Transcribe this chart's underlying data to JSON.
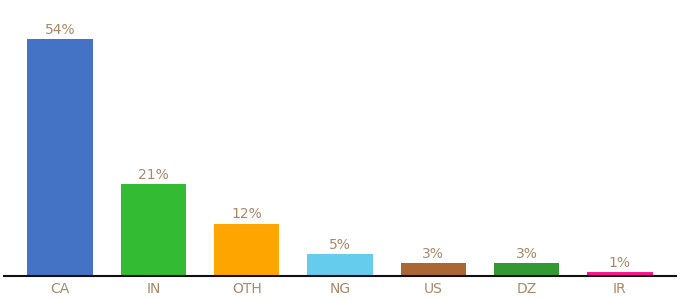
{
  "categories": [
    "CA",
    "IN",
    "OTH",
    "NG",
    "US",
    "DZ",
    "IR"
  ],
  "values": [
    54,
    21,
    12,
    5,
    3,
    3,
    1
  ],
  "bar_colors": [
    "#4472C4",
    "#33BB33",
    "#FFA500",
    "#66CCEE",
    "#AA6633",
    "#339933",
    "#FF1493"
  ],
  "label_texts": [
    "54%",
    "21%",
    "12%",
    "5%",
    "3%",
    "3%",
    "1%"
  ],
  "label_color": "#AA8866",
  "tick_color": "#AA8866",
  "ylim": [
    0,
    62
  ],
  "background_color": "#ffffff",
  "label_fontsize": 10,
  "tick_fontsize": 10,
  "bar_width": 0.7,
  "fig_width": 6.8,
  "fig_height": 3.0
}
